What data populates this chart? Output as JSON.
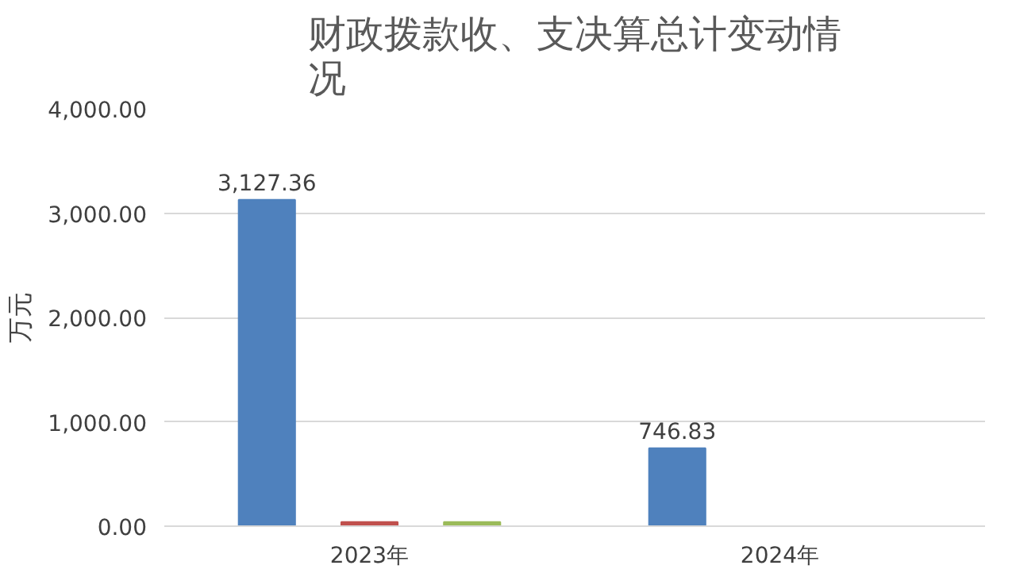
{
  "chart_data": {
    "type": "bar",
    "title": "财政拨款收、支决算总计变动情况",
    "ylabel": "万元",
    "categories": [
      "2023年",
      "2024年"
    ],
    "series": [
      {
        "color": "#4f81bd",
        "values": [
          3127.36,
          746.83
        ],
        "value_labels": [
          "3,127.36",
          "746.83"
        ]
      },
      {
        "color": "#c0504d",
        "values": [
          40,
          0
        ]
      },
      {
        "color": "#9bbb59",
        "values": [
          40,
          0
        ]
      }
    ],
    "ylim": [
      0,
      4000
    ],
    "yticks": [
      {
        "value": 0,
        "label": "0.00"
      },
      {
        "value": 1000,
        "label": "1,000.00"
      },
      {
        "value": 2000,
        "label": "2,000.00"
      },
      {
        "value": 3000,
        "label": "3,000.00"
      },
      {
        "value": 4000,
        "label": "4,000.00"
      }
    ],
    "grid": "y"
  }
}
